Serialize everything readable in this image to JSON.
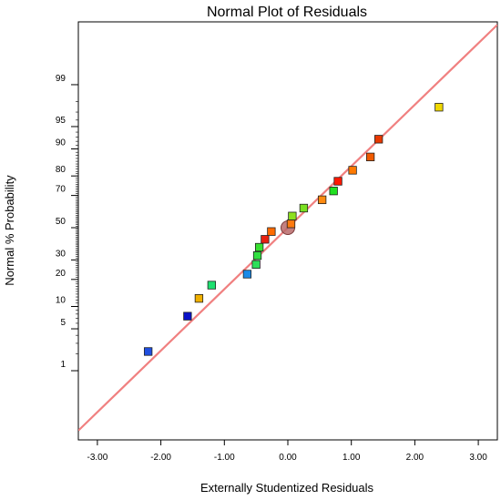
{
  "chart_data": {
    "type": "scatter",
    "title": "Normal Plot of Residuals",
    "xlabel": "Externally Studentized Residuals",
    "ylabel": "Normal % Probability",
    "xlim": [
      -3.3,
      3.3
    ],
    "x_ticks": [
      {
        "value": -3,
        "label": "-3.00"
      },
      {
        "value": -2,
        "label": "-2.00"
      },
      {
        "value": -1,
        "label": "-1.00"
      },
      {
        "value": 0,
        "label": "0.00"
      },
      {
        "value": 1,
        "label": "1.00"
      },
      {
        "value": 2,
        "label": "2.00"
      },
      {
        "value": 3,
        "label": "3.00"
      }
    ],
    "y_scale": "normal-probability",
    "y_ticks": [
      {
        "value": 1,
        "label": "1"
      },
      {
        "value": 5,
        "label": "5"
      },
      {
        "value": 10,
        "label": "10"
      },
      {
        "value": 20,
        "label": "20"
      },
      {
        "value": 30,
        "label": "30"
      },
      {
        "value": 50,
        "label": "50"
      },
      {
        "value": 70,
        "label": "70"
      },
      {
        "value": 80,
        "label": "80"
      },
      {
        "value": 90,
        "label": "90"
      },
      {
        "value": 95,
        "label": "95"
      },
      {
        "value": 99,
        "label": "99"
      }
    ],
    "points": [
      {
        "x": -2.2,
        "y": 2.2,
        "color": "#1f4fe0"
      },
      {
        "x": -1.58,
        "y": 7.5,
        "color": "#0a12c8"
      },
      {
        "x": -1.4,
        "y": 12.5,
        "color": "#f0b000"
      },
      {
        "x": -1.2,
        "y": 17.5,
        "color": "#1ee070"
      },
      {
        "x": -0.64,
        "y": 22.5,
        "color": "#1a8ae8"
      },
      {
        "x": -0.5,
        "y": 27.5,
        "color": "#2ee05a"
      },
      {
        "x": -0.48,
        "y": 32.5,
        "color": "#30e040"
      },
      {
        "x": -0.45,
        "y": 37.5,
        "color": "#38e030"
      },
      {
        "x": -0.36,
        "y": 42.5,
        "color": "#e82010"
      },
      {
        "x": -0.26,
        "y": 47.5,
        "color": "#ff6a00"
      },
      {
        "x": 0.05,
        "y": 52.5,
        "color": "#ff7a10"
      },
      {
        "x": 0.07,
        "y": 57.5,
        "color": "#8ee020"
      },
      {
        "x": 0.25,
        "y": 62.5,
        "color": "#7ae020"
      },
      {
        "x": 0.54,
        "y": 67.5,
        "color": "#ff8a10"
      },
      {
        "x": 0.72,
        "y": 72.5,
        "color": "#20e020"
      },
      {
        "x": 0.79,
        "y": 77.5,
        "color": "#ff1800"
      },
      {
        "x": 1.02,
        "y": 82.5,
        "color": "#ff7a00"
      },
      {
        "x": 1.3,
        "y": 87.5,
        "color": "#f05a00"
      },
      {
        "x": 1.43,
        "y": 92.5,
        "color": "#e83800"
      },
      {
        "x": 2.38,
        "y": 97.5,
        "color": "#f0d800"
      }
    ],
    "center_marker": {
      "x": 0,
      "y": 50,
      "color": "#b86a6a"
    },
    "reference_line": {
      "color": "#f08080",
      "slope": 1,
      "intercept": 0
    }
  }
}
